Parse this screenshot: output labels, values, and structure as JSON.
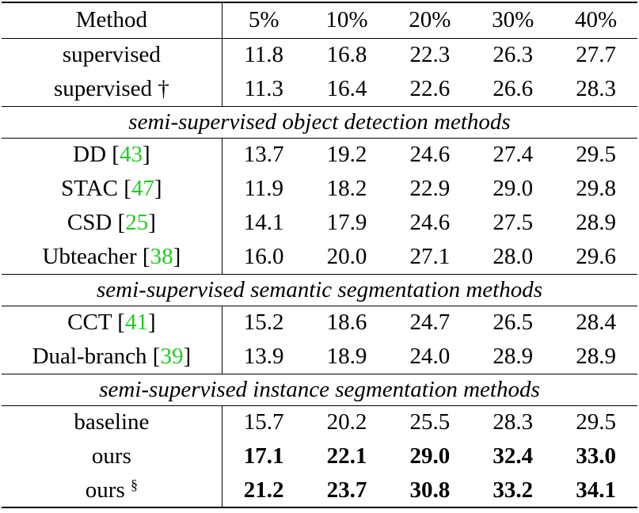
{
  "header": {
    "method": "Method",
    "cols": [
      "5%",
      "10%",
      "20%",
      "30%",
      "40%"
    ]
  },
  "rows_supervised": [
    {
      "name": "supervised",
      "values": [
        "11.8",
        "16.8",
        "22.3",
        "26.3",
        "27.7"
      ]
    },
    {
      "name": "supervised †",
      "values": [
        "11.3",
        "16.4",
        "22.6",
        "26.6",
        "28.3"
      ]
    }
  ],
  "section_object_detection": "semi-supervised object detection methods",
  "rows_object_detection": [
    {
      "name": "DD",
      "cite": "43",
      "values": [
        "13.7",
        "19.2",
        "24.6",
        "27.4",
        "29.5"
      ]
    },
    {
      "name": "STAC",
      "cite": "47",
      "values": [
        "11.9",
        "18.2",
        "22.9",
        "29.0",
        "29.8"
      ]
    },
    {
      "name": "CSD",
      "cite": "25",
      "values": [
        "14.1",
        "17.9",
        "24.6",
        "27.5",
        "28.9"
      ]
    },
    {
      "name": "Ubteacher",
      "cite": "38",
      "values": [
        "16.0",
        "20.0",
        "27.1",
        "28.0",
        "29.6"
      ]
    }
  ],
  "section_semantic": "semi-supervised semantic segmentation methods",
  "rows_semantic": [
    {
      "name": "CCT",
      "cite": "41",
      "values": [
        "15.2",
        "18.6",
        "24.7",
        "26.5",
        "28.4"
      ]
    },
    {
      "name": "Dual-branch",
      "cite": "39",
      "values": [
        "13.9",
        "18.9",
        "24.0",
        "28.9",
        "28.9"
      ]
    }
  ],
  "section_instance": "semi-supervised instance segmentation methods",
  "rows_instance": [
    {
      "name": "baseline",
      "values": [
        "15.7",
        "20.2",
        "25.5",
        "28.3",
        "29.5"
      ]
    },
    {
      "name": "ours",
      "values": [
        "17.1",
        "22.1",
        "29.0",
        "32.4",
        "33.0"
      ]
    },
    {
      "name": "ours",
      "sup": "§",
      "values": [
        "21.2",
        "23.7",
        "30.8",
        "33.2",
        "34.1"
      ]
    }
  ]
}
